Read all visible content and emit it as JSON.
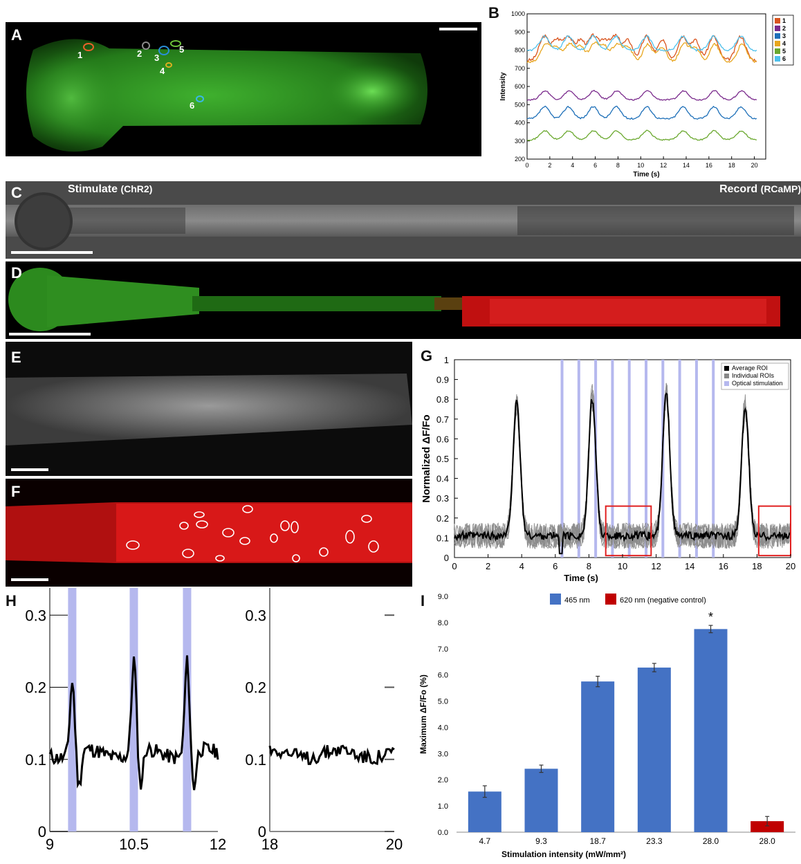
{
  "panels": {
    "A": {
      "label": "A",
      "roi_labels": [
        "1",
        "2",
        "3",
        "4",
        "5",
        "6"
      ],
      "roi_colors": [
        "#e8622a",
        "#8a8a8a",
        "#2a8fd8",
        "#e0b020",
        "#6cc23a",
        "#38b8e8"
      ]
    },
    "B": {
      "label": "B",
      "chart_data": {
        "type": "line",
        "xlabel": "Time (s)",
        "ylabel": "Intensity",
        "xlim": [
          0,
          21
        ],
        "ylim": [
          200,
          1000
        ],
        "xticks": [
          "0",
          "2",
          "4",
          "6",
          "8",
          "10",
          "12",
          "14",
          "16",
          "18",
          "20"
        ],
        "yticks": [
          "200",
          "300",
          "400",
          "500",
          "600",
          "700",
          "800",
          "900",
          "1000"
        ],
        "legend": "right",
        "series": [
          {
            "name": "1",
            "color": "#d9541e",
            "base": 780,
            "amp": 120,
            "phase": 0.0
          },
          {
            "name": "2",
            "color": "#7a2a8c",
            "base": 540,
            "amp": 45,
            "phase": 0.5
          },
          {
            "name": "3",
            "color": "#1d6fb8",
            "base": 440,
            "amp": 60,
            "phase": 0.2
          },
          {
            "name": "4",
            "color": "#e8a61e",
            "base": 760,
            "amp": 90,
            "phase": 0.6
          },
          {
            "name": "5",
            "color": "#6aa82e",
            "base": 320,
            "amp": 45,
            "phase": 0.3
          },
          {
            "name": "6",
            "color": "#4ec0ec",
            "base": 820,
            "amp": 70,
            "phase": 0.1
          }
        ]
      }
    },
    "C": {
      "label": "C",
      "left_title": "Stimulate",
      "left_sub": "(ChR2)",
      "right_title": "Record",
      "right_sub": "(RCaMP)"
    },
    "D": {
      "label": "D"
    },
    "E": {
      "label": "E"
    },
    "F": {
      "label": "F"
    },
    "G": {
      "label": "G",
      "chart_data": {
        "type": "line",
        "xlabel": "Time (s)",
        "ylabel": "Normalized ΔF/Fo",
        "xlim": [
          0,
          20
        ],
        "ylim": [
          0,
          1
        ],
        "xticks": [
          "0",
          "2",
          "4",
          "6",
          "8",
          "10",
          "12",
          "14",
          "16",
          "18",
          "20"
        ],
        "yticks": [
          "0",
          "0.1",
          "0.2",
          "0.3",
          "0.4",
          "0.5",
          "0.6",
          "0.7",
          "0.8",
          "0.9",
          "1"
        ],
        "peaks": [
          [
            3.7,
            0.78
          ],
          [
            8.2,
            0.8
          ],
          [
            12.6,
            0.83
          ],
          [
            17.3,
            0.76
          ]
        ],
        "baseline": 0.11,
        "stimulation_times": [
          6.4,
          7.4,
          8.4,
          9.4,
          10.4,
          11.4,
          12.4,
          13.4,
          14.4,
          15.4
        ],
        "highlight_boxes": [
          [
            9.0,
            11.7
          ],
          [
            18.1,
            20.0
          ]
        ],
        "legend": {
          "position": "top-right",
          "items": [
            "Average ROI",
            "Individual ROIs",
            "Optical stimulation"
          ]
        }
      }
    },
    "H": {
      "label": "H",
      "chart_data": [
        {
          "type": "line",
          "xlim": [
            9,
            12
          ],
          "ylim": [
            0,
            0.33
          ],
          "xticks": [
            "9",
            "10.5",
            "12"
          ],
          "yticks": [
            "0",
            "0.1",
            "0.2",
            "0.3"
          ],
          "stimulation_times": [
            9.4,
            10.5,
            11.45
          ],
          "peaks": [
            [
              9.4,
              0.2
            ],
            [
              10.5,
              0.23
            ],
            [
              11.45,
              0.23
            ]
          ]
        },
        {
          "type": "line",
          "xlim": [
            18,
            20
          ],
          "ylim": [
            0,
            0.33
          ],
          "xticks": [
            "18",
            "20"
          ],
          "yticks": [
            "0",
            "0.1",
            "0.2",
            "0.3"
          ],
          "baseline": 0.11
        }
      ]
    },
    "I": {
      "label": "I",
      "chart_data": {
        "type": "bar",
        "xlabel": "Stimulation intensity (mW/mm²)",
        "ylabel": "Maximum ΔF/Fo (%)",
        "ylim": [
          0,
          9
        ],
        "yticks": [
          "0.0",
          "1.0",
          "2.0",
          "3.0",
          "4.0",
          "5.0",
          "6.0",
          "7.0",
          "8.0",
          "9.0"
        ],
        "categories": [
          "4.7",
          "9.3",
          "18.7",
          "23.3",
          "28.0",
          "28.0"
        ],
        "values": [
          1.55,
          2.42,
          5.75,
          6.28,
          7.75,
          0.42
        ],
        "errors": [
          0.22,
          0.14,
          0.2,
          0.16,
          0.14,
          0.18
        ],
        "colors": [
          "#4472c4",
          "#4472c4",
          "#4472c4",
          "#4472c4",
          "#4472c4",
          "#c00000"
        ],
        "annotation": "*",
        "legend": {
          "position": "top",
          "items": [
            {
              "label": "465 nm",
              "color": "#4472c4"
            },
            {
              "label": "620 nm (negative control)",
              "color": "#c00000"
            }
          ]
        }
      }
    }
  }
}
